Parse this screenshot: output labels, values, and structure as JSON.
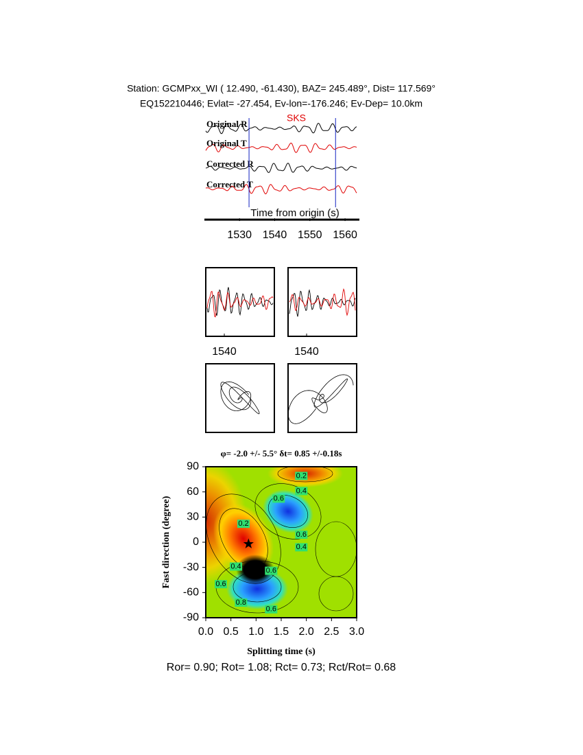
{
  "header": {
    "line1": "Station: GCMPxx_WI (  12.490,  -61.430), BAZ=  245.489°, Dist=  117.569°",
    "line2": "EQ152210446; Evlat= -27.454, Ev-lon=-176.246; Ev-Dep= 10.0km"
  },
  "traces": {
    "labels": [
      "Original R",
      "Original T",
      "Corrected R",
      "Corrected T"
    ],
    "colors": [
      "#000000",
      "#e00000",
      "#000000",
      "#e00000"
    ],
    "phase": "SKS",
    "window": [
      1532.7,
      1557.3
    ],
    "xlabel": "Time from origin (s)",
    "xlim": [
      1520.4,
      1563.3
    ],
    "xticks": [
      1530,
      1540,
      1550,
      1560
    ]
  },
  "zoom": {
    "xlim": [
      1535,
      1553.5
    ],
    "xticks": [
      1540
    ]
  },
  "grid": {
    "title": "φ= -2.0 +/- 5.5° δt= 0.85 +/-0.18s",
    "xlabel": "Splitting time (s)",
    "ylabel": "Fast direction (degree)",
    "xlim": [
      0,
      3
    ],
    "ylim": [
      -90,
      90
    ],
    "xticks": [
      {
        "value": 0,
        "label": "0.0"
      },
      0.5,
      {
        "value": 1,
        "label": "1.0"
      },
      1.5,
      {
        "value": 2,
        "label": "2.0"
      },
      2.5,
      {
        "value": 3,
        "label": "3.0"
      }
    ],
    "yticks": [
      -90,
      -60,
      -30,
      0,
      30,
      60,
      90
    ],
    "best": {
      "dt": 0.85,
      "phi": -2.0
    },
    "contour_labels": [
      {
        "dt": 1.9,
        "phi": 79,
        "level": 0.2
      },
      {
        "dt": 1.9,
        "phi": 61,
        "level": 0.4
      },
      {
        "dt": 1.45,
        "phi": 52,
        "level": 0.6
      },
      {
        "dt": 1.9,
        "phi": 9,
        "level": 0.6
      },
      {
        "dt": 1.9,
        "phi": -6,
        "level": 0.4
      },
      {
        "dt": 0.6,
        "phi": -29,
        "level": 0.4
      },
      {
        "dt": 1.3,
        "phi": -34,
        "level": 0.6
      },
      {
        "dt": 0.3,
        "phi": -50,
        "level": 0.6
      },
      {
        "dt": 0.7,
        "phi": -72,
        "level": 0.8
      },
      {
        "dt": 1.3,
        "phi": -80,
        "level": 0.6
      },
      {
        "dt": 0.75,
        "phi": 22,
        "level": 0.2
      }
    ]
  },
  "footer": "Ror= 0.90; Rot= 1.08; Rct= 0.73; Rct/Rot= 0.68"
}
